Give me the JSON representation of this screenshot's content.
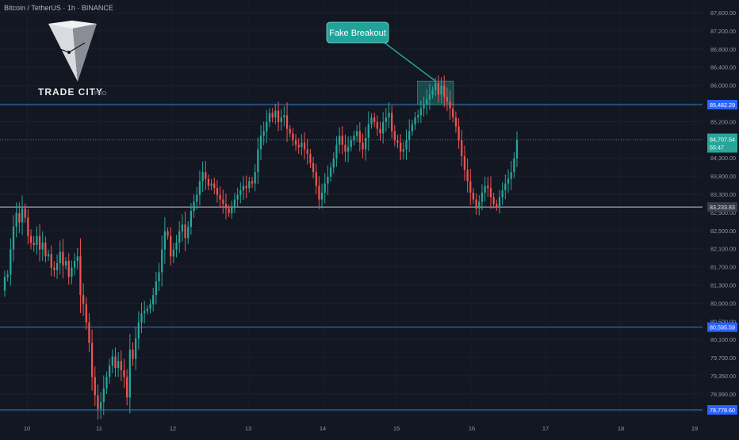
{
  "header": {
    "symbol_title": "Bitcoin / TetherUS · 1h · BINANCE"
  },
  "logo": {
    "brand": "TRADE CITY",
    "suffix": "PRO"
  },
  "annotation": {
    "text": "Fake Breakout"
  },
  "countdown": "55:47",
  "colors": {
    "background": "#131722",
    "up": "#26a69a",
    "down": "#ef5350",
    "level": "#2f7fc7",
    "level_label_bg": "#2962ff",
    "support_level": "#c7c9d1",
    "callout": "#22a39a",
    "axis_text": "#9598a1"
  },
  "chart_data": {
    "type": "candlestick",
    "title": "Bitcoin / TetherUS · 1h · BINANCE",
    "x_tick_labels": [
      "10",
      "11",
      "12",
      "13",
      "14",
      "15",
      "16",
      "17",
      "18",
      "19"
    ],
    "y_tick_labels": [
      "87,600.00",
      "87,200.00",
      "86,800.00",
      "86,400.00",
      "86,000.00",
      "85,600.00",
      "85,200.00",
      "84,800.00",
      "84,300.00",
      "83,800.00",
      "83,300.00",
      "82,900.00",
      "82,500.00",
      "82,100.00",
      "81,700.00",
      "81,300.00",
      "80,900.00",
      "80,500.00",
      "80,100.00",
      "79,700.00",
      "79,350.00",
      "78,990.00",
      "78,650.00"
    ],
    "horizontal_levels": [
      {
        "value": 85482.29,
        "label": "85,482.29",
        "style": "resistance"
      },
      {
        "value": 83233.83,
        "label": "83,233.83",
        "style": "support"
      },
      {
        "value": 80595.59,
        "label": "80,595.59",
        "style": "level"
      },
      {
        "value": 78778.6,
        "label": "78,778.60",
        "style": "level"
      }
    ],
    "current_price": {
      "value": 84707.54,
      "label": "84,707.54"
    },
    "highlight_zone": {
      "label": "Fake Breakout",
      "price_range": [
        85480,
        86000
      ]
    },
    "candles_close": [
      81700,
      81750,
      82300,
      82800,
      83100,
      82900,
      83200,
      83000,
      82600,
      82450,
      82400,
      82600,
      82300,
      82450,
      82150,
      82200,
      81900,
      81850,
      82000,
      82250,
      81950,
      82050,
      81700,
      81900,
      82050,
      82150,
      81300,
      81100,
      80700,
      80250,
      79500,
      79100,
      78800,
      78950,
      79250,
      79500,
      79750,
      79950,
      79700,
      79850,
      79650,
      79500,
      79050,
      80100,
      79900,
      80350,
      80700,
      80900,
      80950,
      81000,
      81100,
      81300,
      81600,
      81800,
      82300,
      82700,
      82600,
      82150,
      82300,
      82450,
      82700,
      82850,
      82550,
      82800,
      83150,
      83350,
      83500,
      83800,
      84000,
      83850,
      83700,
      83750,
      83650,
      83500,
      83400,
      83300,
      83200,
      83100,
      83250,
      83400,
      83500,
      83600,
      83700,
      83650,
      83800,
      83750,
      84000,
      84500,
      84800,
      84900,
      85100,
      85300,
      85200,
      85350,
      85100,
      85200,
      85250,
      84950,
      84850,
      84700,
      84600,
      84550,
      84650,
      84500,
      84400,
      84200,
      84000,
      83700,
      83400,
      83550,
      83750,
      83900,
      84100,
      84300,
      84600,
      84800,
      84600,
      84450,
      84550,
      84700,
      84800,
      84900,
      84650,
      84500,
      84750,
      85050,
      85200,
      85100,
      84950,
      84850,
      85100,
      85200,
      85300,
      84900,
      84700,
      84650,
      84450,
      84500,
      84700,
      84900,
      85050,
      85200,
      85250,
      85400,
      85480,
      85600,
      85700,
      85800,
      85950,
      85700,
      85900,
      85650,
      85550,
      85400,
      85200,
      85000,
      84700,
      84350,
      84050,
      83800,
      83550,
      83400,
      83200,
      83350,
      83550,
      83700,
      83650,
      83450,
      83300,
      83250,
      83450,
      83600,
      83750,
      83850,
      84000,
      84300,
      84707.54
    ]
  }
}
